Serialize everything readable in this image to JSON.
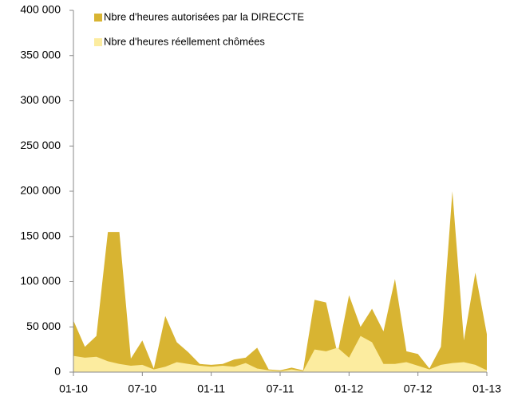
{
  "chart_data": {
    "type": "area",
    "categories": [
      "01-10",
      null,
      null,
      null,
      null,
      null,
      "07-10",
      null,
      null,
      null,
      null,
      null,
      "01-11",
      null,
      null,
      null,
      null,
      null,
      "07-11",
      null,
      null,
      null,
      null,
      null,
      "01-12",
      null,
      null,
      null,
      null,
      null,
      "07-12",
      null,
      null,
      null,
      null,
      null,
      "01-13"
    ],
    "series": [
      {
        "name": "Nbre d'heures autorisées par la DIRECCTE",
        "color": "#d8b432",
        "values": [
          57000,
          28000,
          40000,
          155000,
          155000,
          15000,
          35000,
          4000,
          62000,
          33000,
          22000,
          9000,
          8000,
          9000,
          14000,
          16000,
          27000,
          3000,
          2000,
          5000,
          2000,
          80000,
          77000,
          20000,
          85000,
          50000,
          70000,
          45000,
          103000,
          23000,
          20000,
          4000,
          28000,
          200000,
          35000,
          110000,
          42000
        ]
      },
      {
        "name": "Nbre d'heures réellement chômées",
        "color": "#fcec9f",
        "values": [
          18000,
          16000,
          17000,
          12000,
          9000,
          7000,
          8000,
          3000,
          6000,
          11000,
          9000,
          7000,
          6000,
          7000,
          6000,
          10000,
          4000,
          2000,
          1000,
          3000,
          1000,
          25000,
          23000,
          27000,
          16000,
          40000,
          33000,
          9000,
          9000,
          11000,
          7000,
          3000,
          8000,
          10000,
          11000,
          8000,
          2000
        ]
      }
    ],
    "ylim": [
      0,
      400000
    ],
    "yticks": [
      0,
      {
        "value": 50000,
        "label": "50 000"
      },
      {
        "value": 100000,
        "label": "100 000"
      },
      {
        "value": 150000,
        "label": "150 000"
      },
      {
        "value": 200000,
        "label": "200 000"
      },
      {
        "value": 250000,
        "label": "250 000"
      },
      {
        "value": 300000,
        "label": "300 000"
      },
      {
        "value": 350000,
        "label": "350 000"
      },
      {
        "value": 400000,
        "label": "400 000"
      }
    ],
    "legend": "top"
  }
}
